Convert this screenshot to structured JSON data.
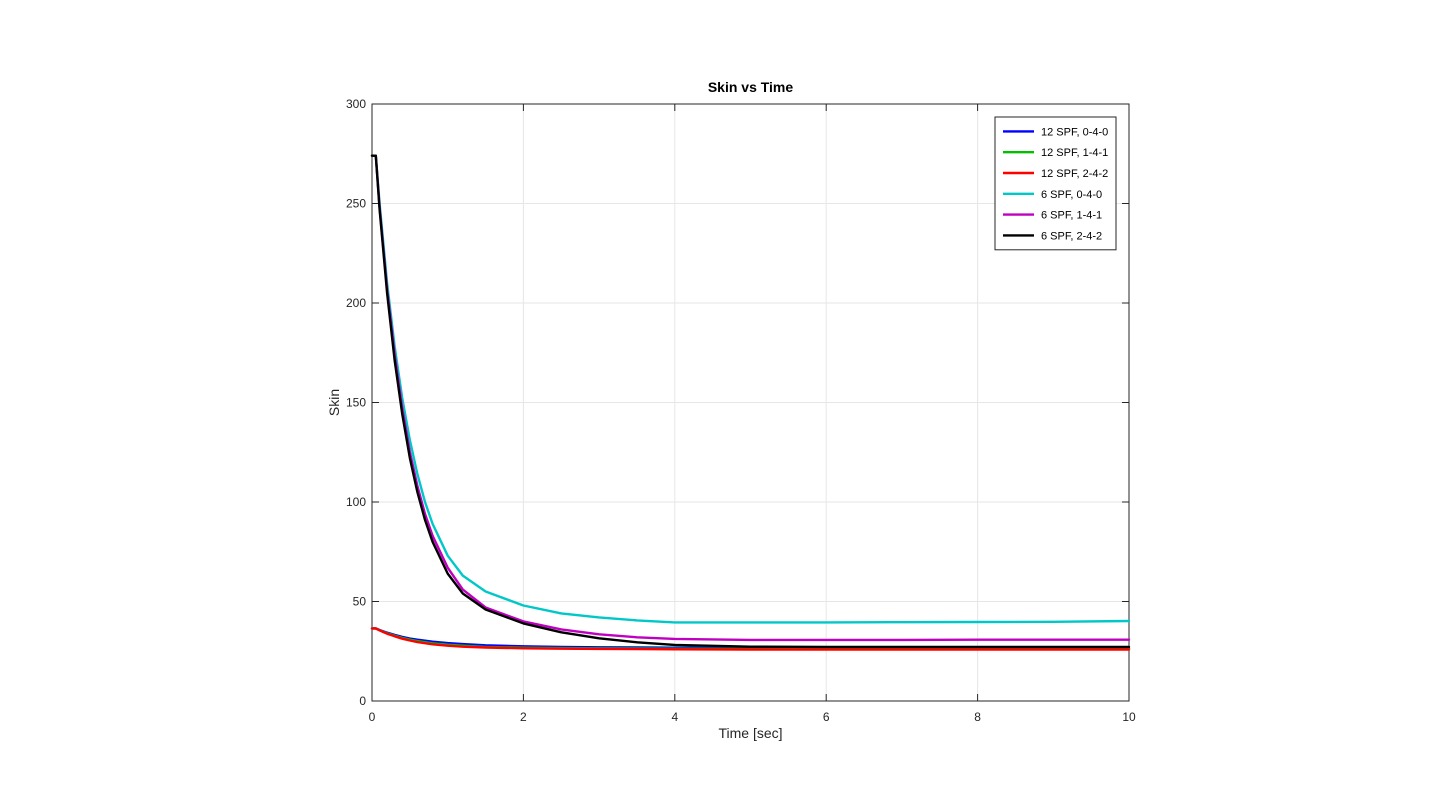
{
  "chart_data": {
    "type": "line",
    "title": "Skin vs Time",
    "xlabel": "Time [sec]",
    "ylabel": "Skin",
    "xlim": [
      0,
      10
    ],
    "ylim": [
      0,
      300
    ],
    "xticks": [
      0,
      2,
      4,
      6,
      8,
      10
    ],
    "yticks": [
      0,
      50,
      100,
      150,
      200,
      250,
      300
    ],
    "xtick_labels": [
      "0",
      "2",
      "4",
      "6",
      "8",
      "10"
    ],
    "ytick_labels": [
      "0",
      "50",
      "100",
      "150",
      "200",
      "250",
      "300"
    ],
    "grid": true,
    "legend_position": "top-right",
    "series": [
      {
        "name": "12 SPF, 0-4-0",
        "color": "#0000ff",
        "x": [
          0,
          0.05,
          0.1,
          0.2,
          0.3,
          0.4,
          0.5,
          0.6,
          0.8,
          1.0,
          1.2,
          1.5,
          2.0,
          2.5,
          3.0,
          4.0,
          5.0,
          6.0,
          7.0,
          8.0,
          9.0,
          10.0
        ],
        "y": [
          36.5,
          36.5,
          35.7,
          34.3,
          33.2,
          32.2,
          31.4,
          30.8,
          29.8,
          29.1,
          28.6,
          28.0,
          27.5,
          27.2,
          27.0,
          26.8,
          26.6,
          26.6,
          26.5,
          26.5,
          26.5,
          26.5
        ]
      },
      {
        "name": "12 SPF, 1-4-1",
        "color": "#00c000",
        "x": [
          0,
          0.05,
          0.1,
          0.2,
          0.3,
          0.4,
          0.5,
          0.6,
          0.8,
          1.0,
          1.2,
          1.5,
          2.0,
          2.5,
          3.0,
          4.0,
          5.0,
          6.0,
          7.0,
          8.0,
          9.0,
          10.0
        ],
        "y": [
          36.5,
          36.5,
          35.6,
          34.0,
          32.8,
          31.7,
          30.8,
          30.1,
          29.0,
          28.3,
          27.8,
          27.2,
          26.8,
          26.6,
          26.5,
          26.3,
          26.2,
          26.2,
          26.2,
          26.2,
          26.2,
          26.2
        ]
      },
      {
        "name": "12 SPF, 2-4-2",
        "color": "#ff0000",
        "x": [
          0,
          0.05,
          0.1,
          0.2,
          0.3,
          0.4,
          0.5,
          0.6,
          0.8,
          1.0,
          1.2,
          1.5,
          2.0,
          2.5,
          3.0,
          4.0,
          5.0,
          6.0,
          7.0,
          8.0,
          9.0,
          10.0
        ],
        "y": [
          36.5,
          36.5,
          35.5,
          33.8,
          32.5,
          31.3,
          30.4,
          29.6,
          28.5,
          27.8,
          27.3,
          26.9,
          26.5,
          26.3,
          26.2,
          26.0,
          25.9,
          25.9,
          25.9,
          25.9,
          25.9,
          25.9
        ]
      },
      {
        "name": "6 SPF, 0-4-0",
        "color": "#00c8c8",
        "x": [
          0,
          0.05,
          0.1,
          0.2,
          0.3,
          0.4,
          0.5,
          0.6,
          0.7,
          0.8,
          1.0,
          1.2,
          1.5,
          2.0,
          2.5,
          3.0,
          3.5,
          4.0,
          5.0,
          6.0,
          7.0,
          8.0,
          9.0,
          10.0
        ],
        "y": [
          274,
          274,
          250,
          210,
          178,
          152,
          131,
          114,
          100,
          89,
          73,
          63,
          55,
          48,
          44,
          42,
          40.5,
          39.5,
          39.5,
          39.5,
          39.6,
          39.7,
          39.8,
          40.2
        ]
      },
      {
        "name": "6 SPF, 1-4-1",
        "color": "#c000c0",
        "x": [
          0,
          0.05,
          0.1,
          0.2,
          0.3,
          0.4,
          0.5,
          0.6,
          0.7,
          0.8,
          1.0,
          1.2,
          1.5,
          2.0,
          2.5,
          3.0,
          3.5,
          4.0,
          5.0,
          6.0,
          7.0,
          8.0,
          9.0,
          10.0
        ],
        "y": [
          274,
          274,
          248,
          207,
          174,
          147,
          125,
          108,
          94,
          83,
          67,
          56,
          47,
          40,
          36,
          33.5,
          32,
          31.2,
          30.7,
          30.7,
          30.7,
          30.8,
          30.8,
          30.8
        ]
      },
      {
        "name": "6 SPF, 2-4-2",
        "color": "#000000",
        "x": [
          0,
          0.05,
          0.1,
          0.2,
          0.3,
          0.4,
          0.5,
          0.6,
          0.7,
          0.8,
          1.0,
          1.2,
          1.5,
          2.0,
          2.5,
          3.0,
          3.5,
          4.0,
          5.0,
          6.0,
          7.0,
          8.0,
          9.0,
          10.0
        ],
        "y": [
          274,
          274,
          247,
          205,
          171,
          144,
          122,
          105,
          91,
          80,
          64,
          54,
          46,
          39,
          34.5,
          31.5,
          29.5,
          28.2,
          27.3,
          27.2,
          27.2,
          27.2,
          27.2,
          27.2
        ]
      }
    ]
  }
}
